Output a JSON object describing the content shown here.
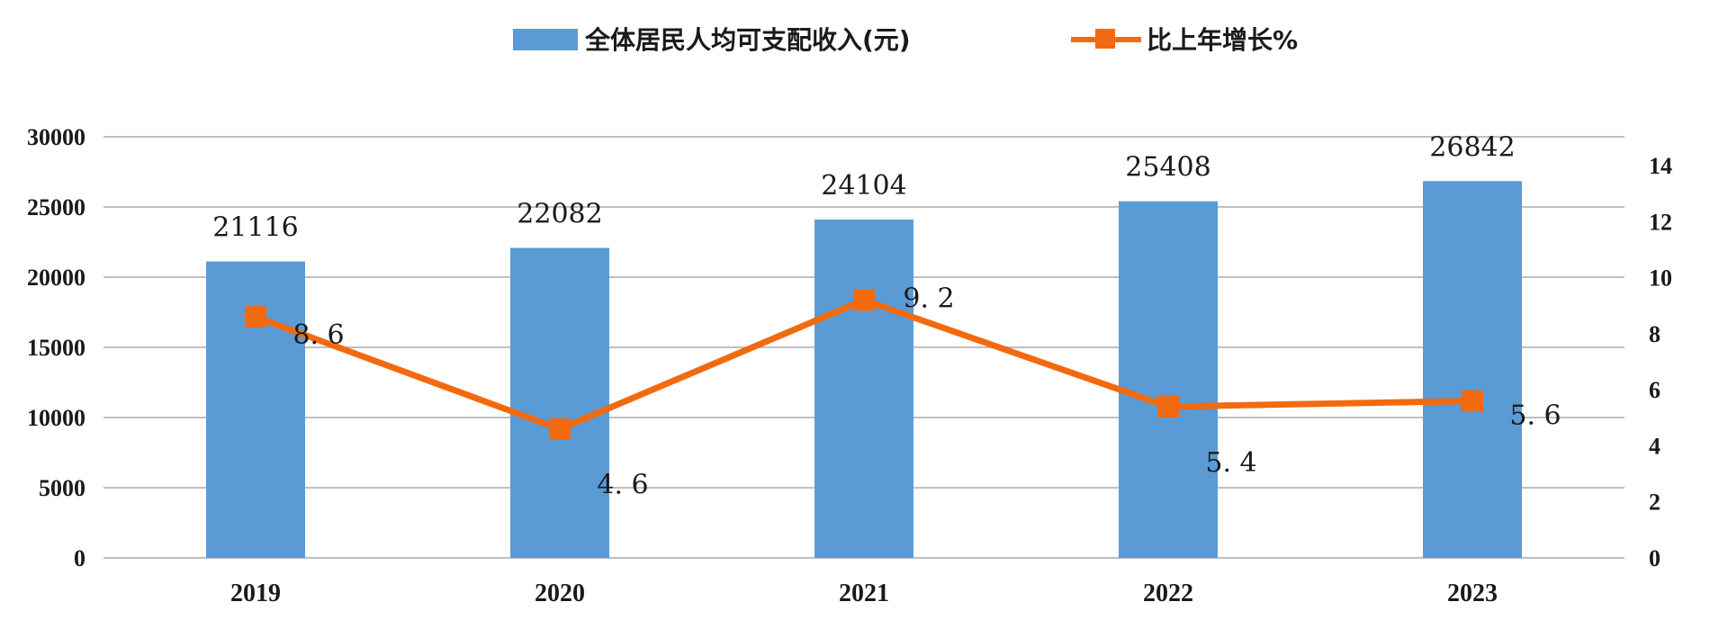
{
  "chart_data": {
    "type": "bar",
    "categories": [
      "2019",
      "2020",
      "2021",
      "2022",
      "2023"
    ],
    "series": [
      {
        "name": "全体居民人均可支配收入(元)",
        "type": "bar",
        "axis": "left",
        "values": [
          21116,
          22082,
          24104,
          25408,
          26842
        ],
        "labels": [
          "21116",
          "22082",
          "24104",
          "25408",
          "26842"
        ],
        "color": "#5B9BD5"
      },
      {
        "name": "比上年增长%",
        "type": "line",
        "axis": "right",
        "values": [
          8.6,
          4.6,
          9.2,
          5.4,
          5.6
        ],
        "labels": [
          "8. 6",
          "4. 6",
          "9. 2",
          "5. 4",
          "5. 6"
        ],
        "color": "#F26A10"
      }
    ],
    "y_left": {
      "ylim": [
        0,
        30000
      ],
      "ticks": [
        "0",
        "5000",
        "10000",
        "15000",
        "20000",
        "25000",
        "30000"
      ]
    },
    "y_right": {
      "ylim": [
        0,
        14
      ],
      "ticks": [
        "0",
        "2",
        "4",
        "6",
        "8",
        "10",
        "12",
        "14"
      ]
    },
    "grid": true,
    "legend_position": "top-center",
    "gridline_color": "#BFBFBF"
  }
}
